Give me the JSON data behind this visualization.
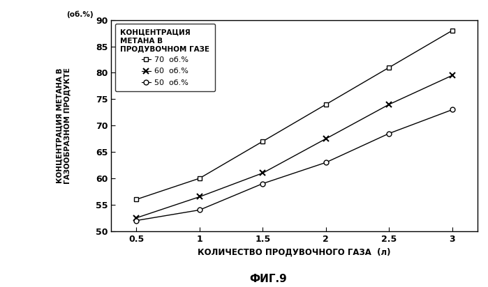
{
  "x": [
    0.5,
    1.0,
    1.5,
    2.0,
    2.5,
    3.0
  ],
  "series_70": [
    56.0,
    60.0,
    67.0,
    74.0,
    81.0,
    88.0
  ],
  "series_60": [
    52.5,
    56.5,
    61.0,
    67.5,
    74.0,
    79.5
  ],
  "series_50": [
    52.0,
    54.0,
    59.0,
    63.0,
    68.5,
    73.0
  ],
  "xlim": [
    0.3,
    3.2
  ],
  "ylim": [
    50,
    90
  ],
  "xticks": [
    0.5,
    1.0,
    1.5,
    2.0,
    2.5,
    3.0
  ],
  "yticks": [
    50,
    55,
    60,
    65,
    70,
    75,
    80,
    85,
    90
  ],
  "xlabel": "КОЛИЧЕСТВО ПРОДУВОЧНОГО ГАЗА  (л)",
  "ylabel_line1": "КОНЦЕНТРАЦИЯ МЕТАНА В",
  "ylabel_line2": "ГАЗООБРАЗНОМ ПРОДУКТЕ",
  "ylabel_units": "(об.%)",
  "caption": "ФИГ.9",
  "legend_title": "КОНЦЕНТРАЦИЯ\nМЕТАНА В\nПРОДУВОЧНОМ ГАЗЕ",
  "legend_70": "70  об.%",
  "legend_60": "60  об.%",
  "legend_50": "50  об.%",
  "line_color": "#000000",
  "bg_color": "#ffffff"
}
